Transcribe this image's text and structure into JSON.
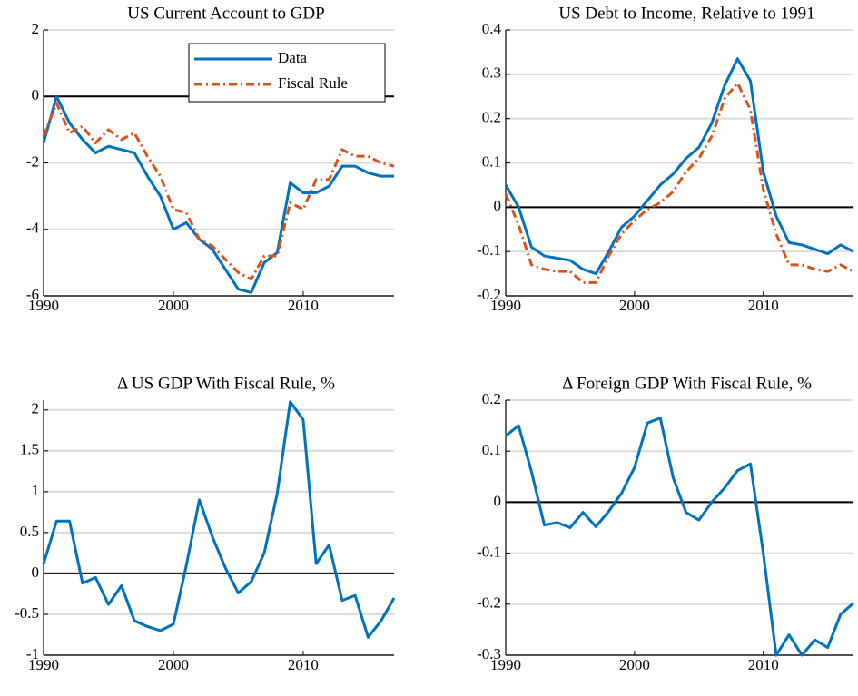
{
  "chart_data": [
    {
      "type": "line",
      "title": "US Current Account to GDP",
      "x": [
        1990,
        1991,
        1992,
        1993,
        1994,
        1995,
        1996,
        1997,
        1998,
        1999,
        2000,
        2001,
        2002,
        2003,
        2004,
        2005,
        2006,
        2007,
        2008,
        2009,
        2010,
        2011,
        2012,
        2013,
        2014,
        2015,
        2016,
        2017
      ],
      "series": [
        {
          "name": "Data",
          "color": "#0072bd",
          "line_style": "solid",
          "values": [
            -1.4,
            0.0,
            -0.8,
            -1.3,
            -1.7,
            -1.5,
            -1.6,
            -1.7,
            -2.4,
            -3.0,
            -4.0,
            -3.8,
            -4.3,
            -4.6,
            -5.2,
            -5.8,
            -5.9,
            -5.0,
            -4.7,
            -2.6,
            -2.9,
            -2.9,
            -2.7,
            -2.1,
            -2.1,
            -2.3,
            -2.4,
            -2.4
          ]
        },
        {
          "name": "Fiscal Rule",
          "color": "#d95319",
          "line_style": "dash-dot",
          "values": [
            -1.2,
            -0.2,
            -1.1,
            -0.9,
            -1.4,
            -1.0,
            -1.3,
            -1.1,
            -1.8,
            -2.4,
            -3.4,
            -3.5,
            -4.3,
            -4.5,
            -4.9,
            -5.3,
            -5.5,
            -4.8,
            -4.8,
            -3.2,
            -3.4,
            -2.5,
            -2.5,
            -1.6,
            -1.8,
            -1.8,
            -2.0,
            -2.1
          ]
        }
      ],
      "xlim": [
        1990,
        2017
      ],
      "xticks": [
        1990,
        2000,
        2010
      ],
      "ylim": [
        -6,
        2
      ],
      "yticks": [
        -6,
        -4,
        -2,
        0,
        2
      ],
      "grid": true,
      "legend": "upper right"
    },
    {
      "type": "line",
      "title": "US Debt to Income, Relative to 1991",
      "x": [
        1990,
        1991,
        1992,
        1993,
        1994,
        1995,
        1996,
        1997,
        1998,
        1999,
        2000,
        2001,
        2002,
        2003,
        2004,
        2005,
        2006,
        2007,
        2008,
        2009,
        2010,
        2011,
        2012,
        2013,
        2014,
        2015,
        2016,
        2017
      ],
      "series": [
        {
          "color": "#0072bd",
          "line_style": "solid",
          "values": [
            0.05,
            0.0,
            -0.09,
            -0.11,
            -0.115,
            -0.12,
            -0.14,
            -0.15,
            -0.1,
            -0.045,
            -0.02,
            0.015,
            0.05,
            0.075,
            0.11,
            0.135,
            0.19,
            0.275,
            0.335,
            0.285,
            0.08,
            -0.02,
            -0.08,
            -0.085,
            -0.095,
            -0.105,
            -0.085,
            -0.1
          ]
        },
        {
          "color": "#d95319",
          "line_style": "dash-dot",
          "values": [
            0.03,
            -0.04,
            -0.13,
            -0.14,
            -0.145,
            -0.145,
            -0.17,
            -0.17,
            -0.11,
            -0.06,
            -0.03,
            -0.005,
            0.01,
            0.035,
            0.08,
            0.11,
            0.16,
            0.245,
            0.28,
            0.22,
            0.04,
            -0.06,
            -0.13,
            -0.13,
            -0.14,
            -0.145,
            -0.13,
            -0.145
          ]
        }
      ],
      "xlim": [
        1990,
        2017
      ],
      "xticks": [
        1990,
        2000,
        2010
      ],
      "ylim": [
        -0.2,
        0.4
      ],
      "yticks": [
        -0.2,
        -0.1,
        0,
        0.1,
        0.2,
        0.3,
        0.4
      ],
      "grid": true
    },
    {
      "type": "line",
      "title": "Δ US GDP With Fiscal Rule, %",
      "x": [
        1990,
        1991,
        1992,
        1993,
        1994,
        1995,
        1996,
        1997,
        1998,
        1999,
        2000,
        2001,
        2002,
        2003,
        2004,
        2005,
        2006,
        2007,
        2008,
        2009,
        2010,
        2011,
        2012,
        2013,
        2014,
        2015,
        2016,
        2017
      ],
      "series": [
        {
          "color": "#0072bd",
          "line_style": "solid",
          "values": [
            0.12,
            0.64,
            0.64,
            -0.12,
            -0.05,
            -0.38,
            -0.15,
            -0.58,
            -0.65,
            -0.7,
            -0.62,
            0.1,
            0.9,
            0.45,
            0.07,
            -0.24,
            -0.1,
            0.25,
            0.98,
            2.1,
            1.88,
            0.12,
            0.35,
            -0.33,
            -0.27,
            -0.78,
            -0.58,
            -0.3
          ]
        }
      ],
      "xlim": [
        1990,
        2017
      ],
      "xticks": [
        1990,
        2000,
        2010
      ],
      "ylim": [
        -1,
        2.12
      ],
      "yticks": [
        -1,
        -0.5,
        0,
        0.5,
        1,
        1.5,
        2
      ],
      "grid": true
    },
    {
      "type": "line",
      "title": "Δ Foreign GDP With Fiscal Rule, %",
      "x": [
        1990,
        1991,
        1992,
        1993,
        1994,
        1995,
        1996,
        1997,
        1998,
        1999,
        2000,
        2001,
        2002,
        2003,
        2004,
        2005,
        2006,
        2007,
        2008,
        2009,
        2010,
        2011,
        2012,
        2013,
        2014,
        2015,
        2016,
        2017
      ],
      "series": [
        {
          "color": "#0072bd",
          "line_style": "solid",
          "values": [
            0.13,
            0.15,
            0.06,
            -0.045,
            -0.04,
            -0.05,
            -0.02,
            -0.048,
            -0.018,
            0.018,
            0.068,
            0.155,
            0.165,
            0.048,
            -0.02,
            -0.035,
            0.0,
            0.028,
            0.062,
            0.075,
            -0.1,
            -0.3,
            -0.26,
            -0.3,
            -0.27,
            -0.285,
            -0.22,
            -0.198
          ]
        }
      ],
      "xlim": [
        1990,
        2017
      ],
      "xticks": [
        1990,
        2000,
        2010
      ],
      "ylim": [
        -0.3,
        0.2
      ],
      "yticks": [
        -0.3,
        -0.2,
        -0.1,
        0,
        0.1,
        0.2
      ],
      "grid": true
    }
  ]
}
